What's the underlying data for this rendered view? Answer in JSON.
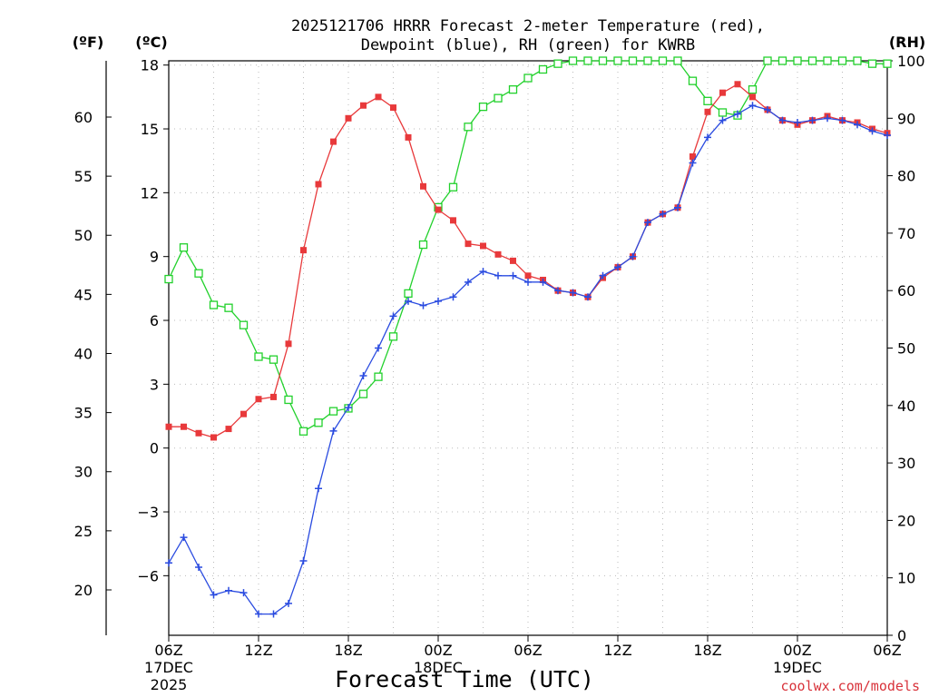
{
  "chart_data": {
    "type": "line",
    "title_lines": [
      "2025121706 HRRR Forecast 2-meter Temperature (red),",
      "Dewpoint (blue), RH (green) for KWRB"
    ],
    "xlabel": "Forecast Time (UTC)",
    "left_axis_f_header": "(ºF)",
    "left_axis_c_header": "(ºC)",
    "right_axis_header": "(RH)",
    "credit": "coolwx.com/models",
    "x_range_hours": [
      0,
      48
    ],
    "ylim_c": [
      -8.8,
      18.2
    ],
    "ylim_rh": [
      0,
      100
    ],
    "c_ticks": [
      "18",
      "15",
      "12",
      "9",
      "6",
      "3",
      "0",
      "−3",
      "−6"
    ],
    "c_tick_values": [
      18,
      15,
      12,
      9,
      6,
      3,
      0,
      -3,
      -6
    ],
    "f_ticks": [
      "60",
      "55",
      "50",
      "45",
      "40",
      "35",
      "30",
      "25",
      "20"
    ],
    "f_tick_values": [
      60,
      55,
      50,
      45,
      40,
      35,
      30,
      25,
      20
    ],
    "rh_ticks": [
      "100",
      "90",
      "80",
      "70",
      "60",
      "50",
      "40",
      "30",
      "20",
      "10",
      "0"
    ],
    "rh_tick_values": [
      100,
      90,
      80,
      70,
      60,
      50,
      40,
      30,
      20,
      10,
      0
    ],
    "x_ticks": [
      {
        "hour": 0,
        "label": "06Z",
        "sub1": "17DEC",
        "sub2": "2025"
      },
      {
        "hour": 6,
        "label": "12Z",
        "sub1": "",
        "sub2": ""
      },
      {
        "hour": 12,
        "label": "18Z",
        "sub1": "",
        "sub2": ""
      },
      {
        "hour": 18,
        "label": "00Z",
        "sub1": "18DEC",
        "sub2": ""
      },
      {
        "hour": 24,
        "label": "06Z",
        "sub1": "",
        "sub2": ""
      },
      {
        "hour": 30,
        "label": "12Z",
        "sub1": "",
        "sub2": ""
      },
      {
        "hour": 36,
        "label": "18Z",
        "sub1": "",
        "sub2": ""
      },
      {
        "hour": 42,
        "label": "00Z",
        "sub1": "19DEC",
        "sub2": ""
      },
      {
        "hour": 48,
        "label": "06Z",
        "sub1": "",
        "sub2": ""
      }
    ],
    "series": [
      {
        "name": "Temperature",
        "unit": "C",
        "color": "#e8393b",
        "marker": "filled-square",
        "x": [
          0,
          1,
          2,
          3,
          4,
          5,
          6,
          7,
          8,
          9,
          10,
          11,
          12,
          13,
          14,
          15,
          16,
          17,
          18,
          19,
          20,
          21,
          22,
          23,
          24,
          25,
          26,
          27,
          28,
          29,
          30,
          31,
          32,
          33,
          34,
          35,
          36,
          37,
          38,
          39,
          40,
          41,
          42,
          43,
          44,
          45,
          46,
          47,
          48
        ],
        "values": [
          1.0,
          1.0,
          0.7,
          0.5,
          0.9,
          1.6,
          2.3,
          2.4,
          4.9,
          9.3,
          12.4,
          14.4,
          15.5,
          16.1,
          16.5,
          16.0,
          14.6,
          12.3,
          11.2,
          10.7,
          9.6,
          9.5,
          9.1,
          8.8,
          8.1,
          7.9,
          7.4,
          7.3,
          7.1,
          8.0,
          8.5,
          9.0,
          10.6,
          11.0,
          11.3,
          13.7,
          15.8,
          16.7,
          17.1,
          16.5,
          15.9,
          15.4,
          15.2,
          15.4,
          15.6,
          15.4,
          15.3,
          15.0,
          14.8
        ]
      },
      {
        "name": "Dewpoint",
        "unit": "C",
        "color": "#2a4be0",
        "marker": "plus",
        "x": [
          0,
          1,
          2,
          3,
          4,
          5,
          6,
          7,
          8,
          9,
          10,
          11,
          12,
          13,
          14,
          15,
          16,
          17,
          18,
          19,
          20,
          21,
          22,
          23,
          24,
          25,
          26,
          27,
          28,
          29,
          30,
          31,
          32,
          33,
          34,
          35,
          36,
          37,
          38,
          39,
          40,
          41,
          42,
          43,
          44,
          45,
          46,
          47,
          48
        ],
        "values": [
          -5.4,
          -4.2,
          -5.6,
          -6.9,
          -6.7,
          -6.8,
          -7.8,
          -7.8,
          -7.3,
          -5.3,
          -1.9,
          0.8,
          1.9,
          3.4,
          4.7,
          6.2,
          6.9,
          6.7,
          6.9,
          7.1,
          7.8,
          8.3,
          8.1,
          8.1,
          7.8,
          7.8,
          7.4,
          7.3,
          7.1,
          8.1,
          8.5,
          9.0,
          10.6,
          11.0,
          11.3,
          13.4,
          14.6,
          15.4,
          15.7,
          16.1,
          15.9,
          15.4,
          15.3,
          15.4,
          15.5,
          15.4,
          15.2,
          14.9,
          14.7
        ]
      },
      {
        "name": "Relative Humidity",
        "unit": "%",
        "color": "#22d12c",
        "marker": "open-square",
        "x": [
          0,
          1,
          2,
          3,
          4,
          5,
          6,
          7,
          8,
          9,
          10,
          11,
          12,
          13,
          14,
          15,
          16,
          17,
          18,
          19,
          20,
          21,
          22,
          23,
          24,
          25,
          26,
          27,
          28,
          29,
          30,
          31,
          32,
          33,
          34,
          35,
          36,
          37,
          38,
          39,
          40,
          41,
          42,
          43,
          44,
          45,
          46,
          47,
          48
        ],
        "values": [
          62,
          67.5,
          63,
          57.5,
          57,
          54,
          48.5,
          48,
          41,
          35.5,
          37,
          39,
          39.5,
          42,
          45,
          52,
          59.5,
          68,
          74.5,
          78,
          88.5,
          92,
          93.5,
          95,
          97,
          98.5,
          99.5,
          100,
          100,
          100,
          100,
          100,
          100,
          100,
          100,
          96.5,
          93,
          91,
          90.5,
          95,
          100,
          100,
          100,
          100,
          100,
          100,
          100,
          99.5,
          99.5
        ]
      }
    ]
  }
}
